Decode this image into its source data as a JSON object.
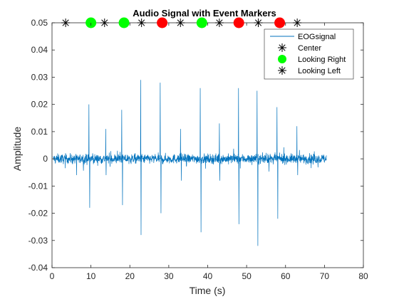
{
  "chart_data": {
    "type": "line",
    "title": "Audio Signal with Event Markers",
    "xlabel": "Time (s)",
    "ylabel": "Amplitude",
    "xlim": [
      0,
      80
    ],
    "ylim": [
      -0.04,
      0.05
    ],
    "xticks": [
      0,
      10,
      20,
      30,
      40,
      50,
      60,
      70,
      80
    ],
    "xtick_labels": [
      "0",
      "10",
      "20",
      "30",
      "40",
      "50",
      "60",
      "70",
      "80"
    ],
    "yticks": [
      -0.04,
      -0.03,
      -0.02,
      -0.01,
      0,
      0.01,
      0.02,
      0.03,
      0.04,
      0.05
    ],
    "ytick_labels": [
      "-0.04",
      "-0.03",
      "-0.02",
      "-0.01",
      "0",
      "0.01",
      "0.02",
      "0.03",
      "0.04",
      "0.05"
    ],
    "grid": false,
    "legend_position": "top-right",
    "colors": {
      "signal": "#0072BD",
      "center": "#000000",
      "looking_right": "#00FF00",
      "looking_left": "#000000",
      "extra_marker": "#FF0000"
    },
    "series": [
      {
        "name": "EOGsignal",
        "kind": "line",
        "x_range": [
          0.3,
          70.5
        ],
        "baseline_noise": 0.003,
        "spikes": [
          {
            "x": 6.3,
            "y": -0.006
          },
          {
            "x": 9.5,
            "y": 0.02
          },
          {
            "x": 9.7,
            "y": -0.018
          },
          {
            "x": 13.8,
            "y": 0.011
          },
          {
            "x": 13.9,
            "y": -0.006
          },
          {
            "x": 17.9,
            "y": 0.018
          },
          {
            "x": 18.1,
            "y": -0.017
          },
          {
            "x": 22.8,
            "y": 0.029
          },
          {
            "x": 22.9,
            "y": -0.028
          },
          {
            "x": 27.8,
            "y": 0.028
          },
          {
            "x": 28.0,
            "y": -0.02
          },
          {
            "x": 33.0,
            "y": 0.011
          },
          {
            "x": 33.2,
            "y": -0.008
          },
          {
            "x": 38.1,
            "y": 0.026
          },
          {
            "x": 38.3,
            "y": -0.027
          },
          {
            "x": 43.0,
            "y": 0.013
          },
          {
            "x": 43.1,
            "y": -0.008
          },
          {
            "x": 47.9,
            "y": 0.026
          },
          {
            "x": 48.0,
            "y": -0.024
          },
          {
            "x": 52.7,
            "y": 0.025
          },
          {
            "x": 52.9,
            "y": -0.032
          },
          {
            "x": 57.8,
            "y": 0.019
          },
          {
            "x": 58.0,
            "y": -0.022
          },
          {
            "x": 62.9,
            "y": 0.012
          },
          {
            "x": 63.1,
            "y": -0.006
          }
        ]
      },
      {
        "name": "Center",
        "kind": "marker",
        "marker": "asterisk",
        "x": [
          3.5,
          13.5,
          23,
          33,
          43,
          53,
          63
        ],
        "y": [
          0.05,
          0.05,
          0.05,
          0.05,
          0.05,
          0.05,
          0.05
        ]
      },
      {
        "name": "Looking Right",
        "kind": "marker",
        "marker": "circle",
        "x": [
          10,
          18.5,
          38.5
        ],
        "y": [
          0.05,
          0.05,
          0.05
        ]
      },
      {
        "name": "Looking Left",
        "kind": "marker",
        "marker": "asterisk",
        "x": [],
        "y": []
      },
      {
        "kind": "marker",
        "marker": "circle-red",
        "x": [
          28.3,
          48,
          58.5
        ],
        "y": [
          0.05,
          0.05,
          0.05
        ]
      }
    ]
  }
}
